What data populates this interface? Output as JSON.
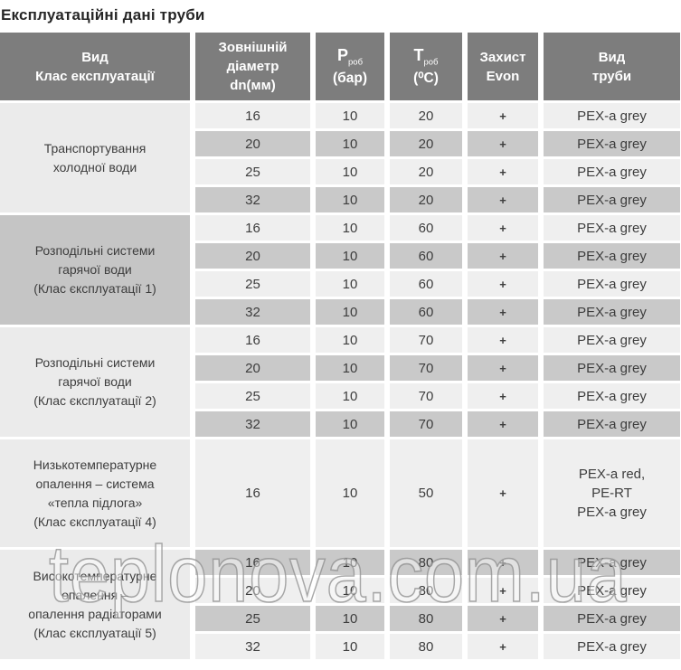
{
  "title": "Експлуатаційні дані труби",
  "watermark": "teplonova.com.ua",
  "colors": {
    "header_bg": "#7d7d7d",
    "header_text": "#ffffff",
    "row_light": "#efefef",
    "row_dark": "#c9c9c9",
    "label_light": "#ebebeb",
    "label_dark": "#c5c5c5",
    "cell_text": "#3d3d3d",
    "title_text": "#262626"
  },
  "table": {
    "columns": [
      {
        "id": "class",
        "lines": [
          "Вид",
          "Клас експлуатації"
        ]
      },
      {
        "id": "diameter",
        "lines": [
          "Зовнішній",
          "діаметр",
          "dn(мм)"
        ]
      },
      {
        "id": "pressure",
        "symbol": "P",
        "symbol_sub": "роб",
        "lines": [
          "(бар)"
        ]
      },
      {
        "id": "temperature",
        "symbol": "T",
        "symbol_sub": "роб",
        "lines": [
          "(⁰C)"
        ]
      },
      {
        "id": "evon",
        "lines": [
          "Захист",
          "Evon"
        ]
      },
      {
        "id": "pipe",
        "lines": [
          "Вид",
          "труби"
        ]
      }
    ],
    "groups": [
      {
        "label_lines": [
          "Транспортування",
          "холодної води"
        ],
        "label_shade": "light",
        "rows": [
          {
            "dn": "16",
            "p": "10",
            "t": "20",
            "evon": "+",
            "pipe_lines": [
              "PEX-a grey"
            ]
          },
          {
            "dn": "20",
            "p": "10",
            "t": "20",
            "evon": "+",
            "pipe_lines": [
              "PEX-a grey"
            ]
          },
          {
            "dn": "25",
            "p": "10",
            "t": "20",
            "evon": "+",
            "pipe_lines": [
              "PEX-a grey"
            ]
          },
          {
            "dn": "32",
            "p": "10",
            "t": "20",
            "evon": "+",
            "pipe_lines": [
              "PEX-a grey"
            ]
          }
        ]
      },
      {
        "label_lines": [
          "Розподільні системи",
          "гарячої води",
          "(Клас єксплуатації 1)"
        ],
        "label_shade": "dark",
        "rows": [
          {
            "dn": "16",
            "p": "10",
            "t": "60",
            "evon": "+",
            "pipe_lines": [
              "PEX-a grey"
            ]
          },
          {
            "dn": "20",
            "p": "10",
            "t": "60",
            "evon": "+",
            "pipe_lines": [
              "PEX-a grey"
            ]
          },
          {
            "dn": "25",
            "p": "10",
            "t": "60",
            "evon": "+",
            "pipe_lines": [
              "PEX-a grey"
            ]
          },
          {
            "dn": "32",
            "p": "10",
            "t": "60",
            "evon": "+",
            "pipe_lines": [
              "PEX-a grey"
            ]
          }
        ]
      },
      {
        "label_lines": [
          "Розподільні системи",
          "гарячої води",
          "(Клас єксплуатації 2)"
        ],
        "label_shade": "light",
        "rows": [
          {
            "dn": "16",
            "p": "10",
            "t": "70",
            "evon": "+",
            "pipe_lines": [
              "PEX-a grey"
            ]
          },
          {
            "dn": "20",
            "p": "10",
            "t": "70",
            "evon": "+",
            "pipe_lines": [
              "PEX-a grey"
            ]
          },
          {
            "dn": "25",
            "p": "10",
            "t": "70",
            "evon": "+",
            "pipe_lines": [
              "PEX-a grey"
            ]
          },
          {
            "dn": "32",
            "p": "10",
            "t": "70",
            "evon": "+",
            "pipe_lines": [
              "PEX-a grey"
            ]
          }
        ]
      },
      {
        "label_lines": [
          "Низькотемпературне",
          "опалення – система",
          "«тепла підлога»",
          "(Клас єксплуатації 4)"
        ],
        "label_shade": "light",
        "rows": [
          {
            "dn": "16",
            "p": "10",
            "t": "50",
            "evon": "+",
            "pipe_lines": [
              "PEX-a red,",
              "PE-RT",
              "PEX-a grey"
            ]
          }
        ]
      },
      {
        "label_lines": [
          "Високотемпературне",
          "опалення –",
          "опалення радіаторами",
          "(Клас єксплуатації 5)"
        ],
        "label_shade": "light",
        "rows": [
          {
            "dn": "16",
            "p": "10",
            "t": "80",
            "evon": "+",
            "pipe_lines": [
              "PEX-a grey"
            ]
          },
          {
            "dn": "20",
            "p": "10",
            "t": "80",
            "evon": "+",
            "pipe_lines": [
              "PEX-a grey"
            ]
          },
          {
            "dn": "25",
            "p": "10",
            "t": "80",
            "evon": "+",
            "pipe_lines": [
              "PEX-a grey"
            ]
          },
          {
            "dn": "32",
            "p": "10",
            "t": "80",
            "evon": "+",
            "pipe_lines": [
              "PEX-a grey"
            ]
          }
        ]
      }
    ]
  }
}
